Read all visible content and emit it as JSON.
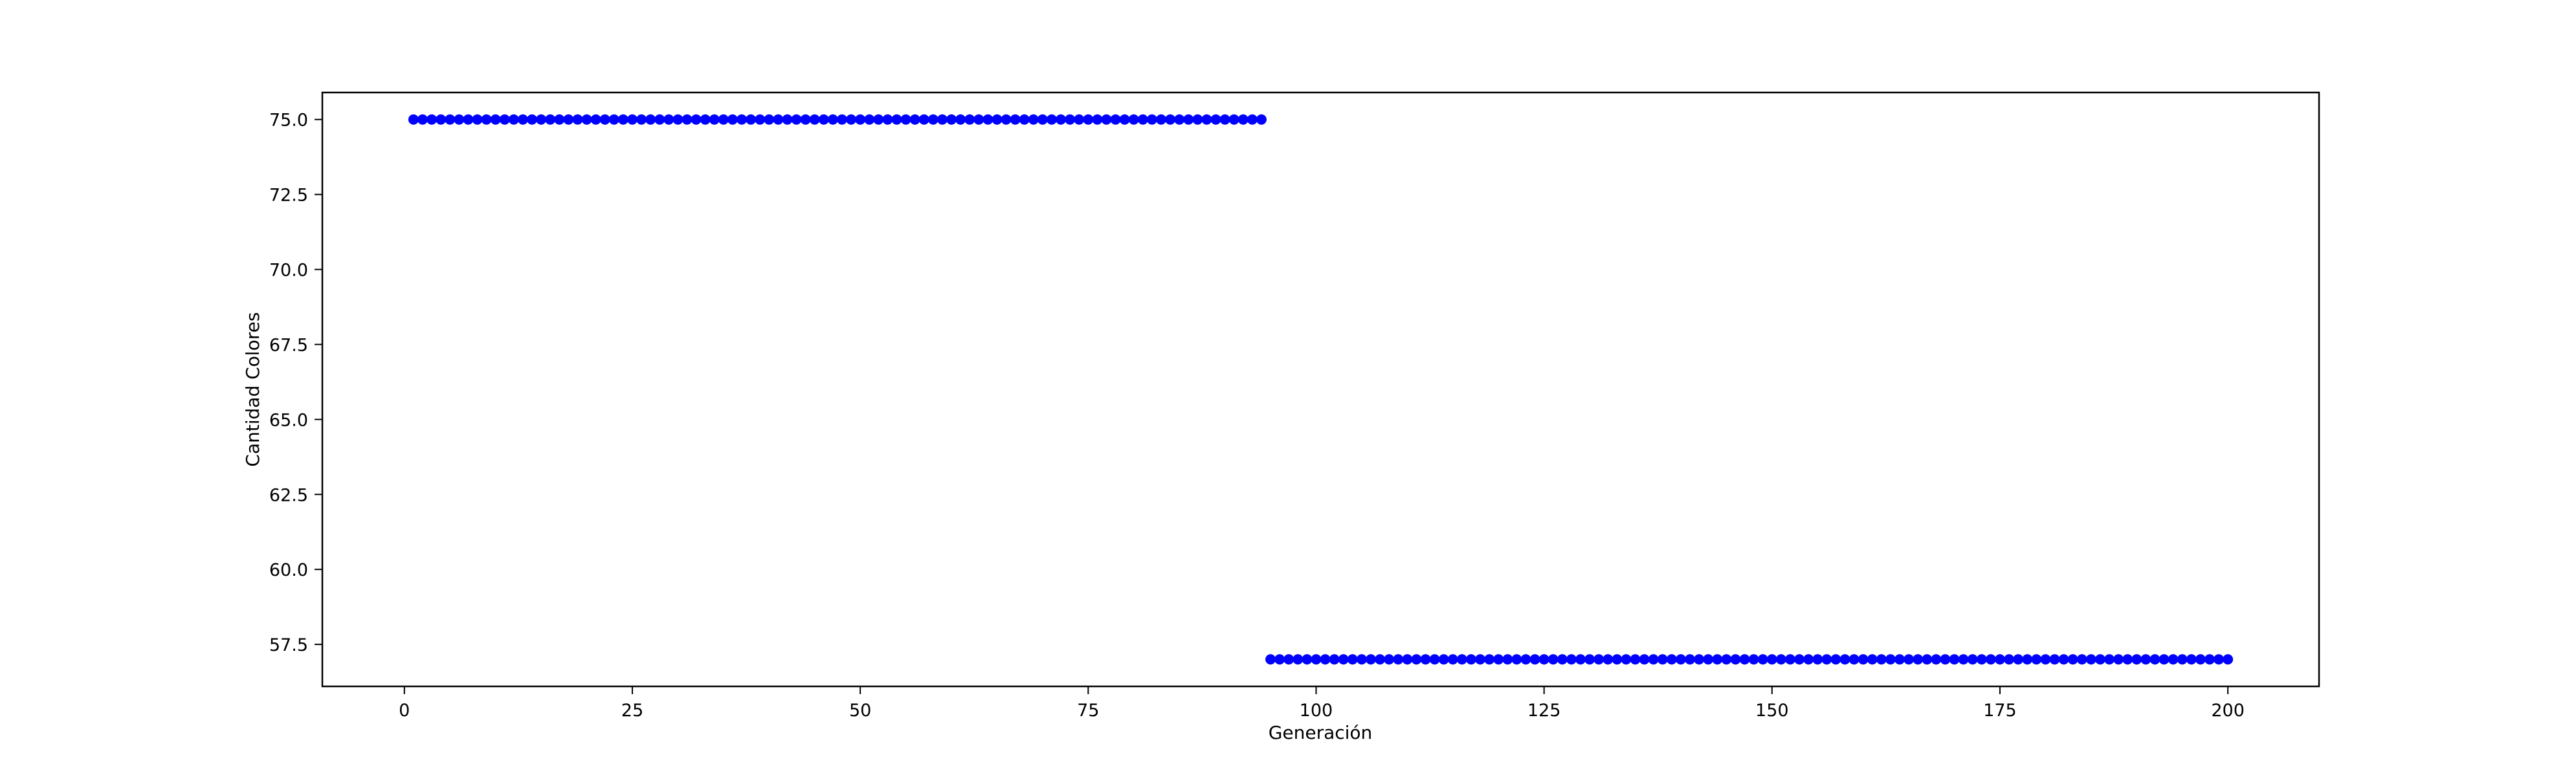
{
  "chart_data": {
    "type": "scatter",
    "title": "",
    "xlabel": "Generación",
    "ylabel": "Cantidad Colores",
    "xlim": [
      -9,
      210
    ],
    "ylim": [
      56.1,
      75.9
    ],
    "xticks": [
      0,
      25,
      50,
      75,
      100,
      125,
      150,
      175,
      200
    ],
    "xtick_labels": [
      "0",
      "25",
      "50",
      "75",
      "100",
      "125",
      "150",
      "175",
      "200"
    ],
    "yticks": [
      57.5,
      60.0,
      62.5,
      65.0,
      67.5,
      70.0,
      72.5,
      75.0
    ],
    "ytick_labels": [
      "57.5",
      "60.0",
      "62.5",
      "65.0",
      "67.5",
      "70.0",
      "72.5",
      "75.0"
    ],
    "grid": false,
    "legend": "none",
    "marker_color": "#0000ff",
    "series": [
      {
        "x_start": 1,
        "x_end": 94,
        "x_step": 1,
        "y": 75.0
      },
      {
        "x_start": 95,
        "x_end": 200,
        "x_step": 1,
        "y": 57.0
      }
    ]
  }
}
